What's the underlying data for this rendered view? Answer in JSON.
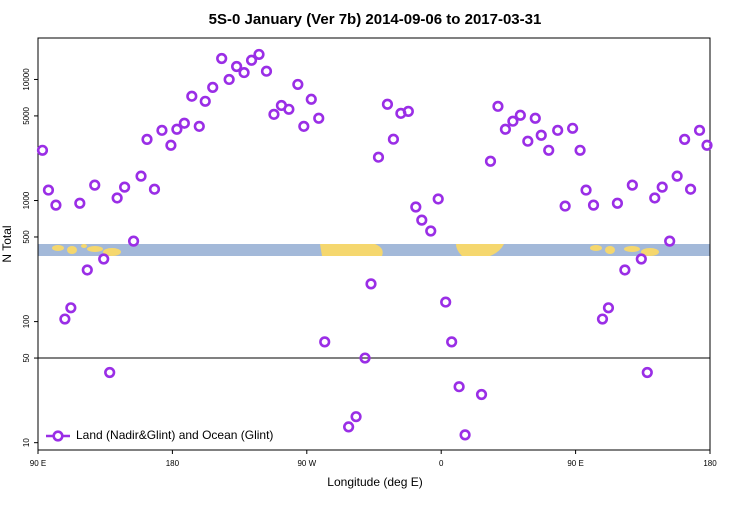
{
  "chart_data": {
    "type": "scatter",
    "title": "5S-0 January (Ver 7b)   2014-09-06 to 2017-03-31",
    "x_label": "Longitude (deg E)",
    "y_label": "N Total",
    "x": [
      93,
      97,
      102,
      108,
      112,
      118,
      123,
      128,
      134,
      138,
      143,
      148,
      154,
      159,
      163,
      168,
      173,
      179,
      183,
      188,
      193,
      198,
      202,
      207,
      213,
      218,
      223,
      228,
      233,
      238,
      243,
      248,
      253,
      258,
      264,
      268,
      273,
      278,
      282,
      298,
      303,
      309,
      313,
      318,
      324,
      328,
      333,
      338,
      343,
      347,
      353,
      358,
      363,
      367,
      372,
      376,
      387,
      393,
      398,
      403,
      408,
      413,
      418,
      423,
      427,
      432,
      438,
      443,
      448,
      453,
      457,
      462,
      468,
      472,
      478,
      483,
      488,
      494,
      498,
      503,
      508,
      513,
      518,
      523,
      527,
      533,
      538
    ],
    "series": [
      {
        "name": "Land (Nadir&Glint) and Ocean (Glint)",
        "color": "#9a2ee6",
        "values": [
          2600,
          1220,
          916,
          105,
          130,
          950,
          267,
          1340,
          329,
          38,
          1050,
          1290,
          462,
          1590,
          3200,
          1240,
          3800,
          2860,
          3880,
          4350,
          7270,
          4100,
          6600,
          8600,
          14900,
          10000,
          12800,
          11400,
          14400,
          16100,
          11700,
          5150,
          6100,
          5670,
          9100,
          4100,
          6860,
          4780,
          68,
          13.5,
          16.4,
          50,
          205,
          2280,
          6240,
          3210,
          5250,
          5450,
          884,
          689,
          560,
          1030,
          145,
          68,
          29,
          11.6,
          25,
          2110,
          6000,
          3880,
          4520,
          5060,
          3090,
          4780,
          3460,
          2600,
          3800,
          900,
          3950,
          2600,
          1220,
          916,
          105,
          130,
          950,
          267,
          1340,
          329,
          38,
          1050,
          1290,
          462,
          1590,
          3200,
          1240,
          3800,
          2860
        ]
      }
    ],
    "xlim": [
      90,
      540
    ],
    "xticks": [
      {
        "value": 90,
        "label": "90 E"
      },
      180,
      {
        "value": 270,
        "label": "90 W"
      },
      {
        "value": 360,
        "label": "0"
      },
      {
        "value": 450,
        "label": "90 E"
      },
      {
        "value": 540,
        "label": "180"
      }
    ],
    "ylim": [
      8.7,
      22000
    ],
    "ylog": true,
    "yticks": [
      10,
      50,
      100,
      500,
      1000,
      5000,
      10000
    ],
    "hline": 50,
    "legend": "bottom-left"
  }
}
